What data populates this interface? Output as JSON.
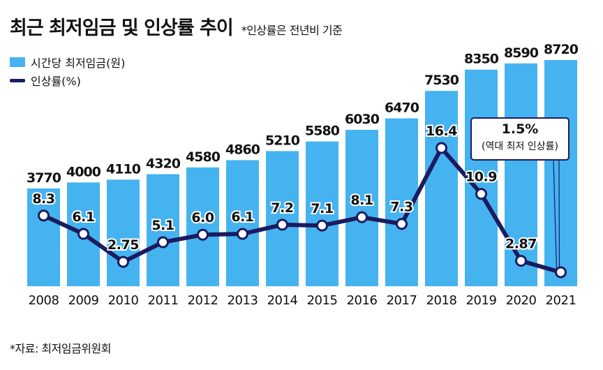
{
  "title": "최근 최저임금 및 인상률 추이",
  "subtitle": "*인상률은 전년비 기준",
  "source": "*자료: 최저임금위원회",
  "legend": {
    "bars_label": "시간당 최저임금(원)",
    "line_label": "인상률(%)"
  },
  "callout": {
    "value": "1.5%",
    "note": "(역대 최저 인상률)"
  },
  "colors": {
    "bar": "#45b3f0",
    "line": "#1b1b60",
    "marker_fill": "#ffffff"
  },
  "chart_data": {
    "type": "bar",
    "title": "최근 최저임금 및 인상률 추이",
    "categories": [
      "2008",
      "2009",
      "2010",
      "2011",
      "2012",
      "2013",
      "2014",
      "2015",
      "2016",
      "2017",
      "2018",
      "2019",
      "2020",
      "2021"
    ],
    "series": [
      {
        "name": "시간당 최저임금(원)",
        "type": "bar",
        "values": [
          3770,
          4000,
          4110,
          4320,
          4580,
          4860,
          5210,
          5580,
          6030,
          6470,
          7530,
          8350,
          8590,
          8720
        ],
        "labels": [
          "3770",
          "4000",
          "4110",
          "4320",
          "4580",
          "4860",
          "5210",
          "5580",
          "6030",
          "6470",
          "7530",
          "8350",
          "8590",
          "8720"
        ]
      },
      {
        "name": "인상률(%)",
        "type": "line",
        "values": [
          8.3,
          6.1,
          2.75,
          5.1,
          6.0,
          6.1,
          7.2,
          7.1,
          8.1,
          7.3,
          16.4,
          10.9,
          2.87,
          1.5
        ],
        "labels": [
          "8.3",
          "6.1",
          "2.75",
          "5.1",
          "6.0",
          "6.1",
          "7.2",
          "7.1",
          "8.1",
          "7.3",
          "16.4",
          "10.9",
          "2.87",
          ""
        ]
      }
    ],
    "axes": "none",
    "legend": "top-left"
  }
}
